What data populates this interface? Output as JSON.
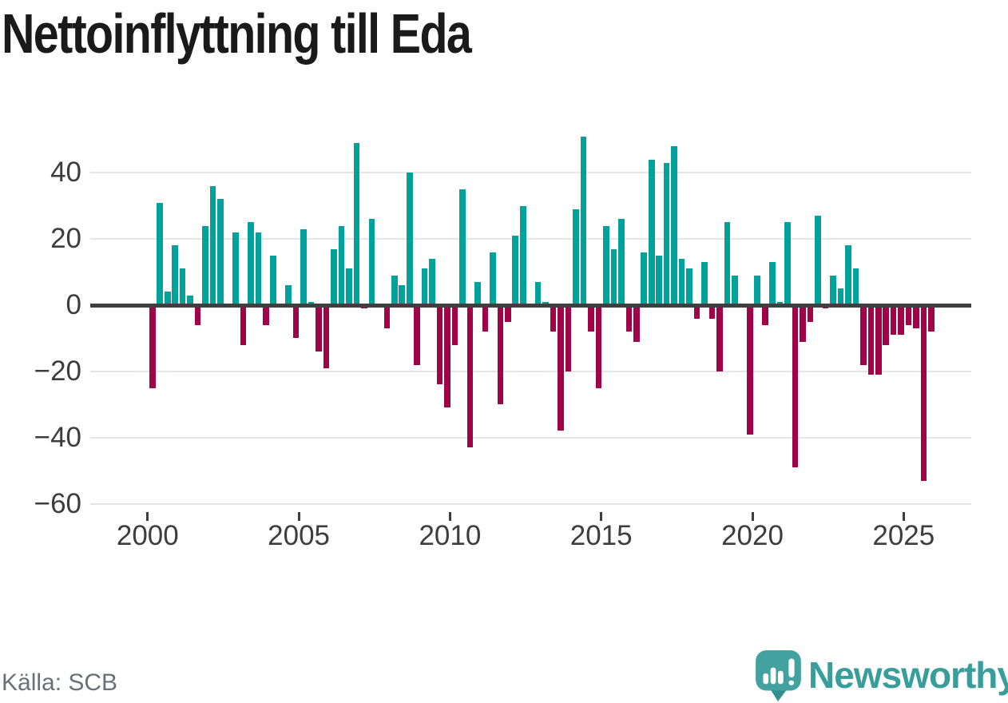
{
  "title": "Nettoinflyttning till Eda",
  "footer": {
    "source": "Källa: SCB",
    "brand": "Newsworthy"
  },
  "colors": {
    "positive": "#00A29B",
    "negative": "#A00347",
    "axis": "#3F3F3F",
    "gridline": "#E5E5E5",
    "tick_label": "#3D3D3D",
    "title": "#1A1A1A",
    "source_text": "#6B6F76",
    "brand_teal": "#389E9C",
    "background": "#FFFFFF"
  },
  "chart_data": {
    "type": "bar",
    "title": "Nettoinflyttning till Eda",
    "x_start": "2000 Q1",
    "x_frequency": "quarterly",
    "x_end": "2025 Q4",
    "values": [
      -25,
      31,
      4,
      18,
      11,
      3,
      -6,
      24,
      36,
      32,
      0,
      22,
      -12,
      25,
      22,
      -6,
      15,
      0,
      6,
      -10,
      23,
      1,
      -14,
      -19,
      17,
      24,
      11,
      49,
      -1,
      26,
      0,
      -7,
      9,
      6,
      40,
      -18,
      11,
      14,
      -24,
      -31,
      -12,
      35,
      -43,
      7,
      -8,
      16,
      -30,
      -5,
      21,
      30,
      0,
      7,
      1,
      -8,
      -38,
      -20,
      29,
      51,
      -8,
      -25,
      24,
      17,
      26,
      -8,
      -11,
      16,
      44,
      15,
      43,
      48,
      14,
      11,
      -4,
      13,
      -4,
      -20,
      25,
      9,
      0,
      -39,
      9,
      -6,
      13,
      1,
      25,
      -49,
      -11,
      -5,
      27,
      -1,
      9,
      5,
      18,
      11,
      -18,
      -21,
      -21,
      -12,
      -9,
      -9,
      -6,
      -7,
      -53,
      -8
    ],
    "x_tick_labels": [
      "2000",
      "2005",
      "2010",
      "2015",
      "2020",
      "2025"
    ],
    "y_ticks": [
      40,
      20,
      0,
      -20,
      -40,
      -60
    ],
    "y_tick_labels": [
      "40",
      "20",
      "0",
      "−20",
      "−40",
      "−60"
    ],
    "ylim": [
      -60,
      55
    ],
    "grid": "horizontal",
    "legend": "none",
    "positive_color": "#00A29B",
    "negative_color": "#A00347"
  }
}
